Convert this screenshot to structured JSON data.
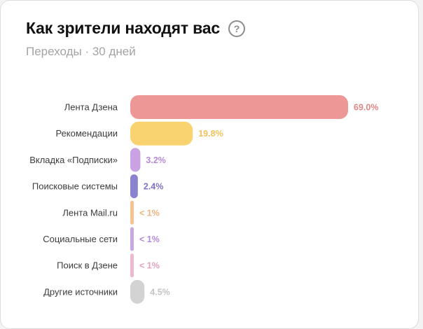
{
  "header": {
    "title": "Как зрители находят вас",
    "help_glyph": "?",
    "subtitle": "Переходы · 30 дней"
  },
  "icons": {
    "help": "question-circle-icon"
  },
  "chart_data": {
    "type": "bar",
    "orientation": "horizontal",
    "title": "Как зрители находят вас",
    "subtitle": "Переходы · 30 дней",
    "categories": [
      "Лента Дзена",
      "Рекомендации",
      "Вкладка «Подписки»",
      "Поисковые системы",
      "Лента Mail.ru",
      "Социальные сети",
      "Поиск в Дзене",
      "Другие источники"
    ],
    "values": [
      69.0,
      19.8,
      3.2,
      2.4,
      0.5,
      0.5,
      0.5,
      4.5
    ],
    "value_labels": [
      "69.0%",
      "19.8%",
      "3.2%",
      "2.4%",
      "< 1%",
      "< 1%",
      "< 1%",
      "4.5%"
    ],
    "colors": [
      "#ee9797",
      "#f9d36f",
      "#c8a2e2",
      "#8b82d0",
      "#f6c290",
      "#c9a8e2",
      "#ecb9cf",
      "#d3d3d3"
    ],
    "label_colors": [
      "#e08787",
      "#f1c25c",
      "#b68ad8",
      "#7c72c6",
      "#f0b27c",
      "#b48ad8",
      "#e3a3bf",
      "#c4c4c4"
    ],
    "xlim": [
      0,
      69.0
    ],
    "grid": false,
    "legend": "none"
  }
}
